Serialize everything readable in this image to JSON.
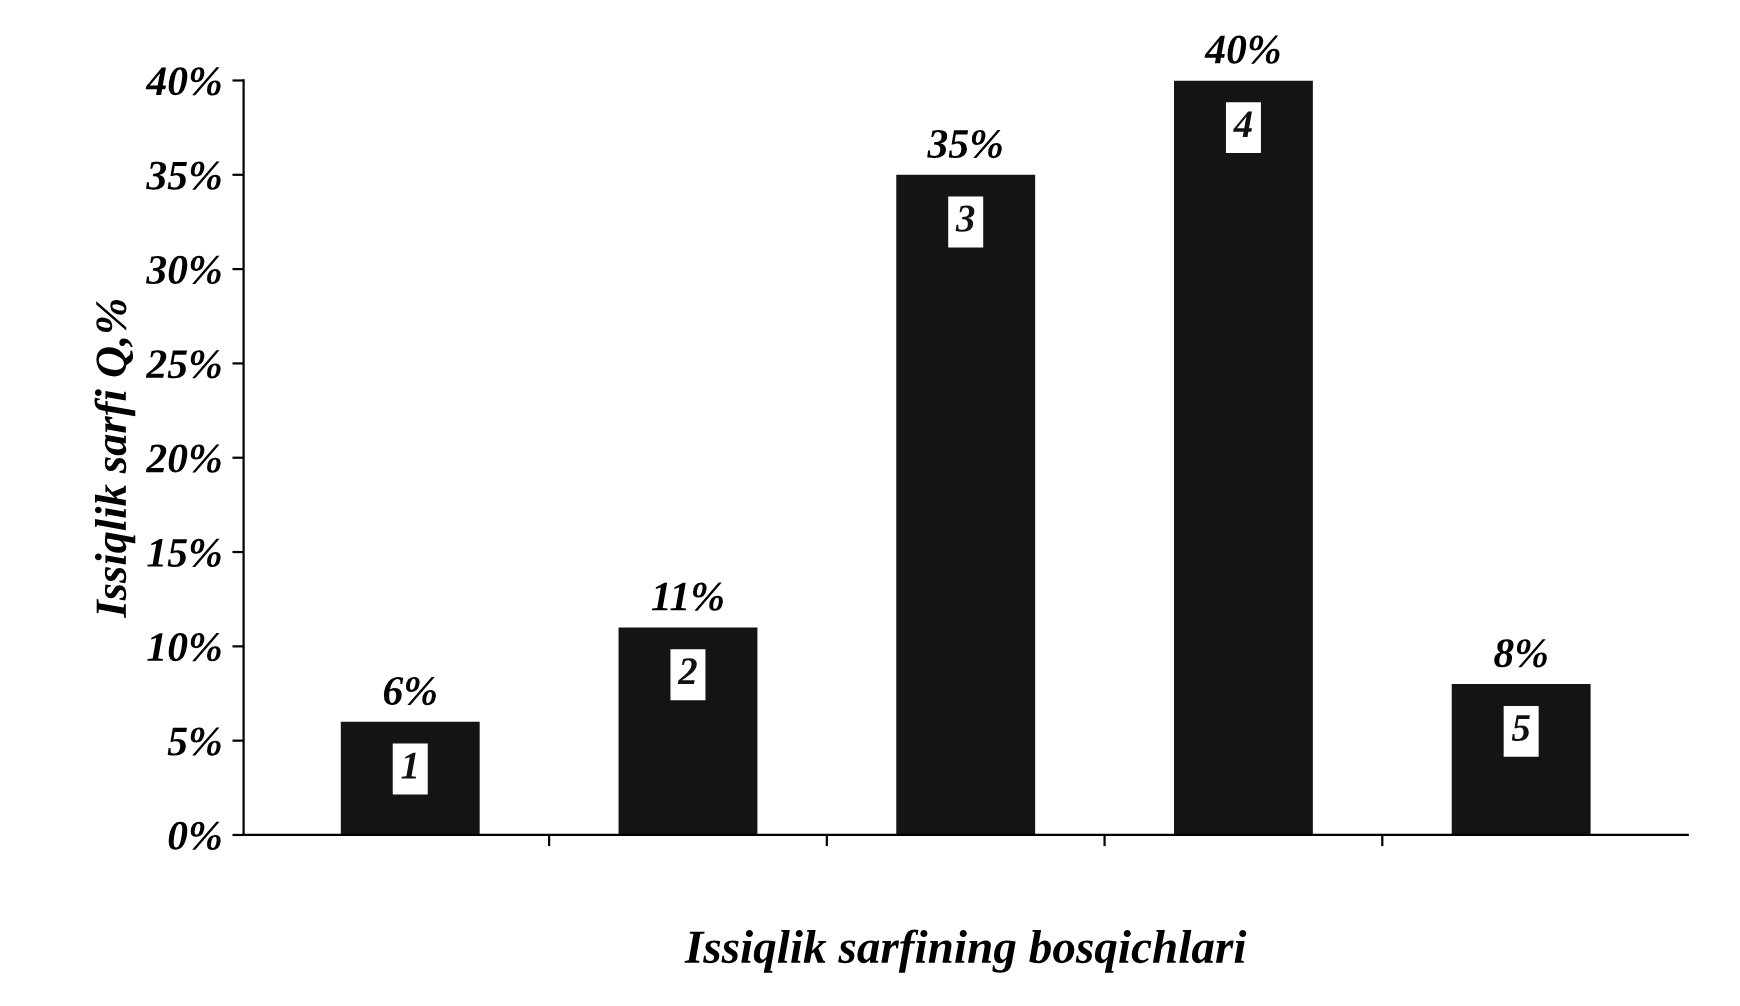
{
  "chart_data": {
    "type": "bar",
    "xlabel": "Issiqlik sarfining bosqichlari",
    "ylabel": "Issiqlik sarfi Q,%",
    "categories": [
      "1",
      "2",
      "3",
      "4",
      "5"
    ],
    "values": [
      6,
      11,
      35,
      40,
      8
    ],
    "value_labels": [
      "6%",
      "11%",
      "35%",
      "40%",
      "8%"
    ],
    "color": "#141414",
    "ylim": [
      0,
      40
    ],
    "yticks": [
      {
        "value": 0,
        "label": "0%"
      },
      {
        "value": 5,
        "label": "5%"
      },
      {
        "value": 10,
        "label": "10%"
      },
      {
        "value": 15,
        "label": "15%"
      },
      {
        "value": 20,
        "label": "20%"
      },
      {
        "value": 25,
        "label": "25%"
      },
      {
        "value": 30,
        "label": "30%"
      },
      {
        "value": 35,
        "label": "35%"
      },
      {
        "value": 40,
        "label": "40%"
      }
    ],
    "tick_labels": "y",
    "grid": false,
    "legend": false
  }
}
